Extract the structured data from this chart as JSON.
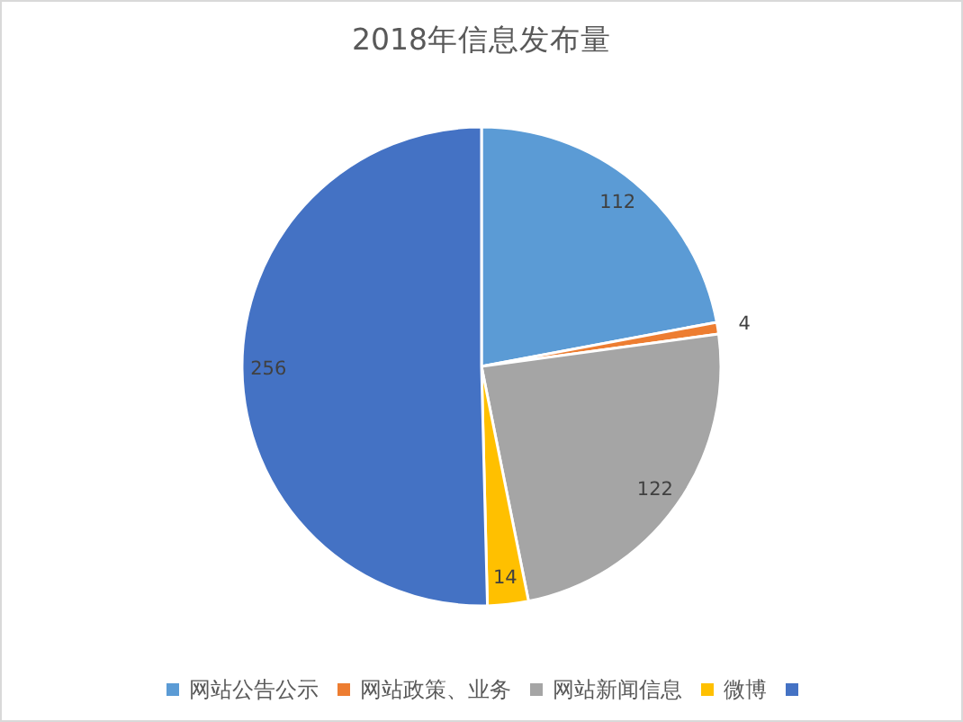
{
  "chart_data": {
    "type": "pie",
    "title": "2018年信息发布量",
    "categories": [
      "网站公告公示",
      "网站政策、业务",
      "网站新闻信息",
      "微博",
      null
    ],
    "values": [
      112,
      4,
      122,
      14,
      256
    ],
    "colors": [
      "#5b9bd5",
      "#ed7d31",
      "#a5a5a5",
      "#ffc000",
      "#4472c4"
    ],
    "data_labels": true,
    "legend": "bottom"
  }
}
